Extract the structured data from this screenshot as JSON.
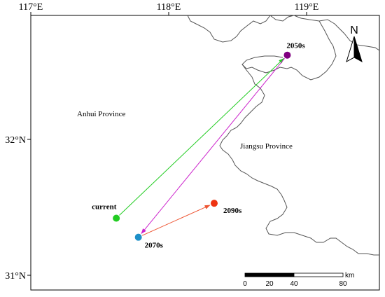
{
  "axes": {
    "x_ticks": [
      {
        "value": 117,
        "label": "117°E"
      },
      {
        "value": 118,
        "label": "118°E"
      },
      {
        "value": 119,
        "label": "119°E"
      }
    ],
    "y_ticks": [
      {
        "value": 32,
        "label": "32°N"
      },
      {
        "value": 31,
        "label": "31°N"
      }
    ]
  },
  "provinces": {
    "anhui": "Anhui Province",
    "jiangsu": "Jiangsu Province"
  },
  "points": [
    {
      "label": "current",
      "lon": 117.62,
      "lat": 31.42,
      "color": "#22cc22"
    },
    {
      "label": "2050s",
      "lon": 118.86,
      "lat": 32.62,
      "color": "#800080"
    },
    {
      "label": "2070s",
      "lon": 117.78,
      "lat": 31.28,
      "color": "#1e90c8"
    },
    {
      "label": "2090s",
      "lon": 118.33,
      "lat": 31.53,
      "color": "#ee3311"
    }
  ],
  "arrows": [
    {
      "from": "current",
      "to": "2050s",
      "color": "#22cc22"
    },
    {
      "from": "2050s",
      "to": "2070s",
      "color": "#cc22cc"
    },
    {
      "from": "2070s",
      "to": "2090s",
      "color": "#ee5533"
    }
  ],
  "north_arrow": {
    "label": "N",
    "icon": "north-arrow-icon"
  },
  "scale_bar": {
    "ticks": [
      "0",
      "20",
      "40",
      "80"
    ],
    "unit": "km"
  },
  "colors": {
    "boundary": "#555555",
    "frame": "#000000"
  }
}
